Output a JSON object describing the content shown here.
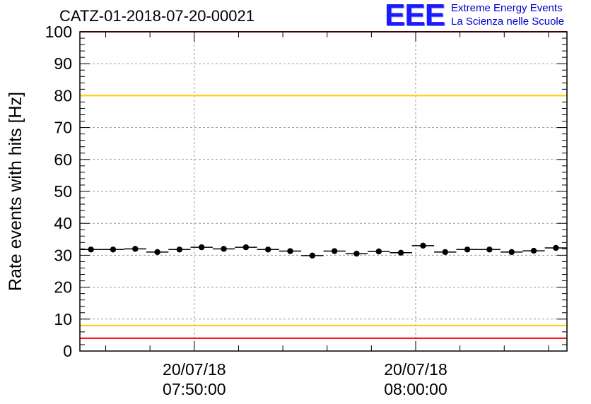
{
  "chart_data": {
    "type": "scatter",
    "title": "CATZ-01-2018-07-20-00021",
    "ylabel": "Rate events with hits [Hz]",
    "xlabel": "",
    "ylim": [
      0,
      100
    ],
    "yticks": [
      0,
      10,
      20,
      30,
      40,
      50,
      60,
      70,
      80,
      90,
      100
    ],
    "x_time_range": [
      "20/07/18 07:44:50",
      "20/07/18 08:06:50"
    ],
    "xticks": [
      {
        "time": "20/07/18 07:50:00",
        "date": "20/07/18",
        "clock": "07:50:00"
      },
      {
        "time": "20/07/18 08:00:00",
        "date": "20/07/18",
        "clock": "08:00:00"
      }
    ],
    "grid": true,
    "series": [
      {
        "x": [
          "07:45:20",
          "07:46:20",
          "07:47:20",
          "07:48:20",
          "07:49:20",
          "07:50:20",
          "07:51:20",
          "07:52:20",
          "07:53:20",
          "07:54:20",
          "07:55:20",
          "07:56:20",
          "07:57:20",
          "07:58:20",
          "07:59:20",
          "08:00:20",
          "08:01:20",
          "08:02:20",
          "08:03:20",
          "08:04:20",
          "08:05:20",
          "08:06:20"
        ],
        "y": [
          31.8,
          31.8,
          32.0,
          31.0,
          31.8,
          32.5,
          32.0,
          32.5,
          31.8,
          31.3,
          29.9,
          31.3,
          30.5,
          31.2,
          30.8,
          33.0,
          31.0,
          31.8,
          31.8,
          31.0,
          31.4,
          32.3
        ]
      }
    ],
    "reference_lines": [
      {
        "y": 100,
        "color": "#ff0000"
      },
      {
        "y": 80,
        "color": "#ffcc00"
      },
      {
        "y": 8,
        "color": "#ffcc00"
      },
      {
        "y": 4,
        "color": "#ff0000"
      }
    ]
  },
  "logo": {
    "mark": "EEE",
    "line1": "Extreme Energy Events",
    "line2": "La Scienza nelle Scuole",
    "color": "#0000cc"
  }
}
